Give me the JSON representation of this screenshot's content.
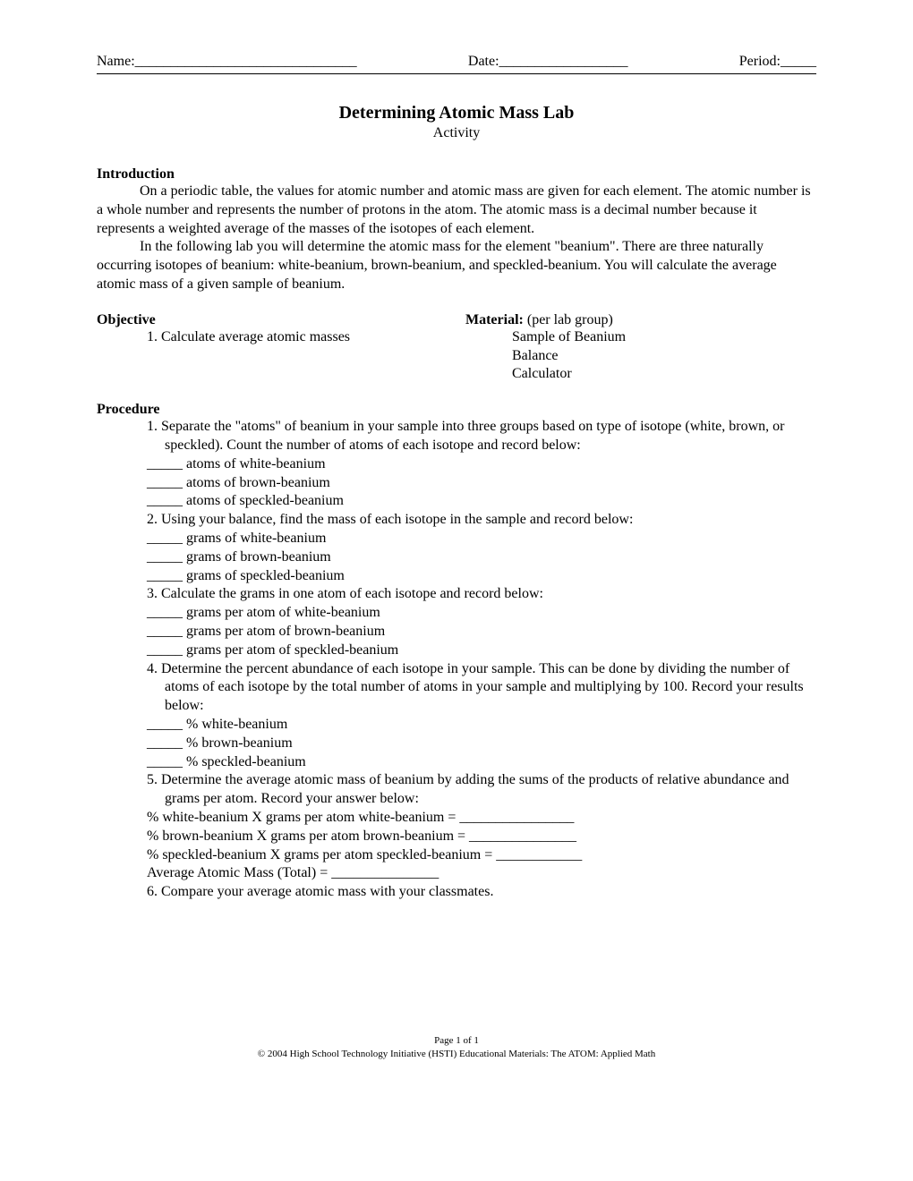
{
  "header": {
    "name_label": "Name:_______________________________",
    "date_label": "Date:__________________",
    "period_label": "Period:_____"
  },
  "title": "Determining Atomic Mass Lab",
  "subtitle": "Activity",
  "intro": {
    "header": "Introduction",
    "para1": "On a periodic table, the values for atomic number and atomic mass are given for each element.  The atomic number is a whole number and represents the number of protons in the atom.  The atomic mass is a decimal number because it represents a weighted average of the masses of the isotopes of each element.",
    "para2": "In the following lab you will determine the atomic mass for the element \"beanium\".  There are three naturally occurring isotopes of beanium:  white-beanium, brown-beanium, and speckled-beanium.  You will calculate the average atomic mass of a given sample of beanium."
  },
  "objective": {
    "header": "Objective",
    "item1": "1.  Calculate average atomic masses"
  },
  "material": {
    "header": "Material:",
    "sub": "  (per lab group)",
    "item1": "Sample of Beanium",
    "item2": "Balance",
    "item3": "Calculator"
  },
  "procedure": {
    "header": "Procedure",
    "step1": "1.  Separate the \"atoms\" of beanium in your sample into three groups based on type of isotope (white, brown, or speckled).  Count the number of atoms of each isotope and record  below:",
    "step1_sub1": "_____ atoms of white-beanium",
    "step1_sub2": "_____ atoms of brown-beanium",
    "step1_sub3": "_____ atoms of speckled-beanium",
    "step2": "2.  Using your balance, find the mass of each isotope in the sample and record below:",
    "step2_sub1": "_____ grams of white-beanium",
    "step2_sub2": "_____ grams of brown-beanium",
    "step2_sub3": "_____ grams of speckled-beanium",
    "step3": "3.  Calculate the grams in one atom of each isotope and record below:",
    "step3_sub1": "_____ grams per atom of white-beanium",
    "step3_sub2": "_____ grams per atom of brown-beanium",
    "step3_sub3": "_____ grams per atom of speckled-beanium",
    "step4": "4.  Determine the percent abundance of each isotope in your sample.  This can be done by dividing the number of atoms of each isotope by the total number of atoms in your sample and multiplying by 100.  Record your results below:",
    "step4_sub1": "_____ % white-beanium",
    "step4_sub2": "_____ % brown-beanium",
    "step4_sub3": "_____ % speckled-beanium",
    "step5": "5.  Determine the average atomic mass of beanium by adding the sums of the products of relative abundance and grams per atom.  Record your answer below:",
    "step5_sub1": "% white-beanium  X grams per atom white-beanium =  ________________",
    "step5_sub2": "% brown-beanium X grams per atom brown-beanium =  _______________",
    "step5_sub3": "% speckled-beanium X grams per atom speckled-beanium =  ____________",
    "step5_total": "Average Atomic Mass (Total)  =  _______________",
    "step6": "6.  Compare your average atomic mass with your classmates."
  },
  "footer": {
    "line1": "Page 1 of 1",
    "line2": "© 2004 High School Technology Initiative (HSTI) Educational Materials: The ATOM: Applied Math"
  }
}
